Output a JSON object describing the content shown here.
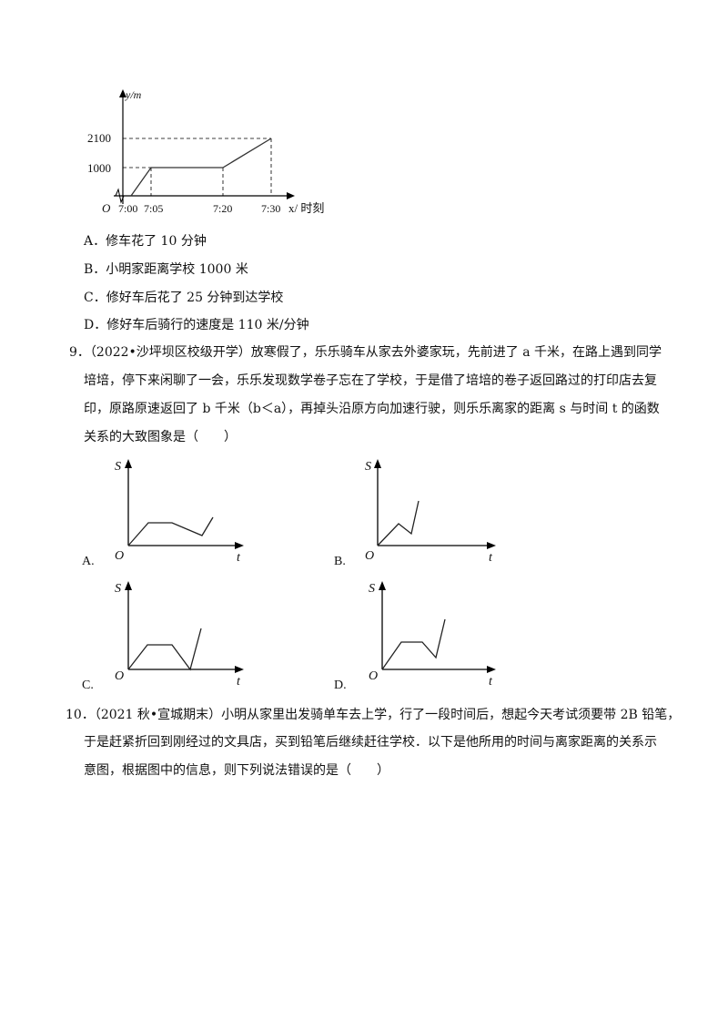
{
  "q8": {
    "graph": {
      "y_axis_label": "y/m",
      "x_axis_label": "x/ 时刻",
      "origin": "O",
      "y_ticks": [
        "2100",
        "1000"
      ],
      "x_ticks": [
        "7:00",
        "7:05",
        "7:20",
        "7:30"
      ]
    },
    "options": [
      "A．修车花了 10 分钟",
      "B．小明家距离学校 1000 米",
      "C．修好车后花了 25 分钟到达学校",
      "D．修好车后骑行的速度是 110 米/分钟"
    ]
  },
  "q9": {
    "lines": [
      "9．（2022•沙坪坝区校级开学）放寒假了，乐乐骑车从家去外婆家玩，先前进了 a 千米，在路上遇到同学",
      "培培，停下来闲聊了一会，乐乐发现数学卷子忘在了学校，于是借了培培的卷子返回路过的打印店去复",
      "印，原路原速返回了 b 千米（b＜a），再掉头沿原方向加速行驶，则乐乐离家的距离 s 与时间 t 的函数",
      "关系的大致图象是（　　）"
    ],
    "choices": [
      {
        "letter": "A.",
        "y_label": "S",
        "x_label": "t",
        "origin": "O"
      },
      {
        "letter": "B.",
        "y_label": "S",
        "x_label": "t",
        "origin": "O"
      },
      {
        "letter": "C.",
        "y_label": "S",
        "x_label": "t",
        "origin": "O"
      },
      {
        "letter": "D.",
        "y_label": "S",
        "x_label": "t",
        "origin": "O"
      }
    ]
  },
  "q10": {
    "lines": [
      "10．（2021 秋•宣城期末）小明从家里出发骑单车去上学，行了一段时间后，想起今天考试须要带 2B 铅笔，",
      "于是赶紧折回到刚经过的文具店，买到铅笔后继续赶往学校．以下是他所用的时间与离家距离的关系示",
      "意图，根据图中的信息，则下列说法错误的是（　　）"
    ]
  }
}
